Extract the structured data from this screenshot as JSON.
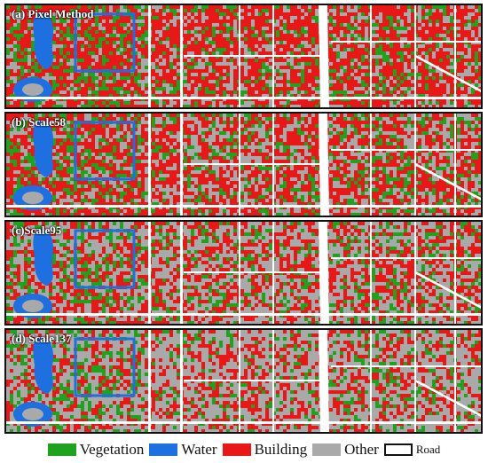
{
  "panels": [
    {
      "label": "(a) Pixel Method",
      "vegetation": 0.18,
      "building": 0.55,
      "other": 0.27,
      "seed": 11
    },
    {
      "label": "(b) Scale58",
      "vegetation": 0.16,
      "building": 0.5,
      "other": 0.34,
      "seed": 23
    },
    {
      "label": "(c)Scale95",
      "vegetation": 0.15,
      "building": 0.38,
      "other": 0.47,
      "seed": 37
    },
    {
      "label": "(d) Scale137",
      "vegetation": 0.13,
      "building": 0.3,
      "other": 0.57,
      "seed": 53
    }
  ],
  "legend": {
    "vegetation": "Vegetation",
    "water": "Water",
    "building": "Building",
    "other": "Other",
    "road": "Road"
  },
  "colors": {
    "vegetation": "#1fa31f",
    "water": "#1e6fe0",
    "building": "#e81818",
    "other": "#a9a9a9",
    "road": "#ffffff",
    "border": "#111111"
  }
}
